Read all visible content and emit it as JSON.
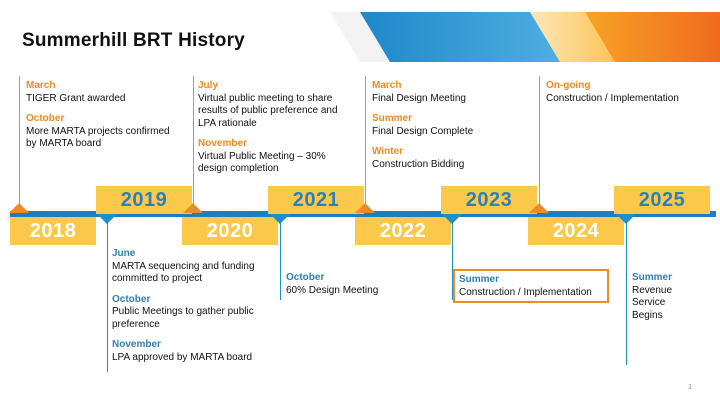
{
  "title": "Summerhill BRT History",
  "page_number": "1",
  "years": {
    "y2018": "2018",
    "y2019": "2019",
    "y2020": "2020",
    "y2021": "2021",
    "y2022": "2022",
    "y2023": "2023",
    "y2024": "2024",
    "y2025": "2025"
  },
  "milestones": {
    "m2018": [
      {
        "when": "March",
        "what": "TIGER Grant awarded"
      },
      {
        "when": "October",
        "what": "More MARTA projects confirmed by MARTA board"
      }
    ],
    "m2019": [
      {
        "when": "June",
        "what": "MARTA sequencing and funding committed to project"
      },
      {
        "when": "October",
        "what": "Public Meetings to gather public preference"
      },
      {
        "when": "November",
        "what": "LPA approved by MARTA board"
      }
    ],
    "m2020": [
      {
        "when": "July",
        "what": "Virtual public meeting to share results of public preference and LPA rationale"
      },
      {
        "when": "November",
        "what": "Virtual Public Meeting – 30% design completion"
      }
    ],
    "m2021": [
      {
        "when": "October",
        "what": "60% Design Meeting"
      }
    ],
    "m2022": [
      {
        "when": "March",
        "what": "Final Design Meeting"
      },
      {
        "when": "Summer",
        "what": "Final Design Complete"
      },
      {
        "when": "Winter",
        "what": "Construction Bidding"
      }
    ],
    "m2023": [
      {
        "when": "Summer",
        "what": "Construction / Implementation"
      }
    ],
    "m2024": [
      {
        "when": "On-going",
        "what": "Construction / Implementation"
      }
    ],
    "m2025": [
      {
        "when": "Summer",
        "what": "Revenue Service Begins"
      }
    ]
  },
  "colors": {
    "orange": "#f08a24",
    "blue": "#1b7fbf",
    "yellow": "#fcc84a"
  }
}
